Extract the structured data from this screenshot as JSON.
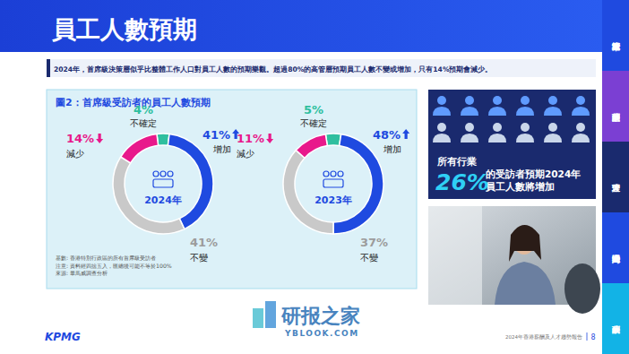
{
  "page": {
    "title": "員工人數預期",
    "summary": "2024年，首席級決策層似乎比整體工作人口對員工人數的預期樂觀。超過80%的高管層預期員工人數不變或增加，只有14%預期會減少。",
    "nav": [
      "人才市場概覽",
      "薪酬展望",
      "人才管理",
      "大灣區機遇",
      "薪酬表"
    ],
    "footer": {
      "brand": "KPMG",
      "report": "2024年香港薪酬及人才趨勢報告",
      "page": "8"
    },
    "watermark": [
      "研报之家",
      "YBLOOK.COM"
    ]
  },
  "figure": {
    "title": "圖2：首席級受訪者的員工人數預期",
    "notes": [
      "基數: 香港特別行政區的所有首席級受訪者",
      "注意: 資料經四捨五入，匯總後可能不等於100%",
      "來源: 畢馬威調查分析"
    ]
  },
  "stat": {
    "lines": [
      "所有行業",
      "26%",
      "的受訪者預期2024年",
      "員工人數將增加"
    ]
  },
  "chart_data": [
    {
      "type": "pie",
      "title": "2024年",
      "categories": [
        "不確定",
        "增加",
        "不變",
        "減少"
      ],
      "values": [
        4,
        41,
        41,
        14
      ],
      "value_labels": [
        "4%",
        "41%",
        "41%",
        "14%"
      ],
      "colors": [
        "#2fbf9f",
        "#1f4ae0",
        "#c9c9c9",
        "#e8198b"
      ],
      "data_labels": true
    },
    {
      "type": "pie",
      "title": "2023年",
      "categories": [
        "不確定",
        "增加",
        "不變",
        "減少"
      ],
      "values": [
        5,
        48,
        37,
        11
      ],
      "value_labels": [
        "5%",
        "48%",
        "37%",
        "11%"
      ],
      "colors": [
        "#2fbf9f",
        "#1f4ae0",
        "#c9c9c9",
        "#e8198b"
      ],
      "data_labels": true
    }
  ]
}
